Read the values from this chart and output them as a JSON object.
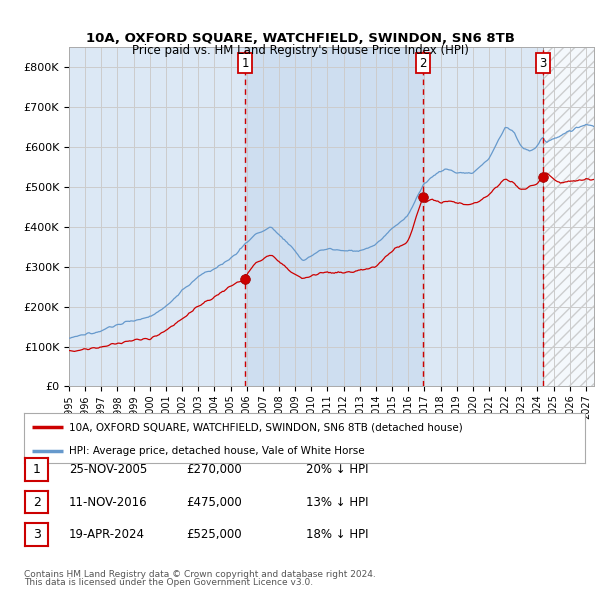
{
  "title": "10A, OXFORD SQUARE, WATCHFIELD, SWINDON, SN6 8TB",
  "subtitle": "Price paid vs. HM Land Registry's House Price Index (HPI)",
  "ylim": [
    0,
    850000
  ],
  "yticks": [
    0,
    100000,
    200000,
    300000,
    400000,
    500000,
    600000,
    700000,
    800000
  ],
  "ytick_labels": [
    "£0",
    "£100K",
    "£200K",
    "£300K",
    "£400K",
    "£500K",
    "£600K",
    "£700K",
    "£800K"
  ],
  "background_color": "#ffffff",
  "plot_bg_color": "#dce8f5",
  "fill_bg_color": "#c8dff0",
  "grid_color": "#cccccc",
  "sale_prices": [
    270000,
    475000,
    525000
  ],
  "legend_property": "10A, OXFORD SQUARE, WATCHFIELD, SWINDON, SN6 8TB (detached house)",
  "legend_hpi": "HPI: Average price, detached house, Vale of White Horse",
  "footer1": "Contains HM Land Registry data © Crown copyright and database right 2024.",
  "footer2": "This data is licensed under the Open Government Licence v3.0.",
  "red_color": "#cc0000",
  "blue_color": "#6699cc",
  "vline_color": "#cc0000",
  "table_rows": [
    [
      "1",
      "25-NOV-2005",
      "£270,000",
      "20% ↓ HPI"
    ],
    [
      "2",
      "11-NOV-2016",
      "£475,000",
      "13% ↓ HPI"
    ],
    [
      "3",
      "19-APR-2024",
      "£525,000",
      "18% ↓ HPI"
    ]
  ]
}
